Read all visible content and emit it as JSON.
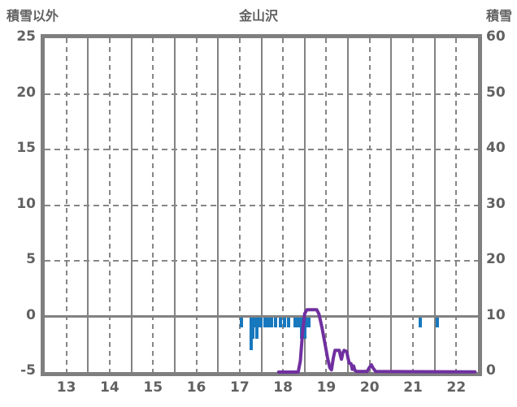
{
  "header": {
    "left_axis_title": "積雪以外",
    "chart_title": "金山沢",
    "right_axis_title": "積雪"
  },
  "colors": {
    "frame_gray": "#7f7f7f",
    "grid_gray": "#828282",
    "text_gray": "#616161",
    "bar_blue": "#1878be",
    "line_purple": "#7030a0",
    "background": "#ffffff"
  },
  "chart_data": {
    "type": "bar",
    "subtype": "dual-axis bar(down from zero) + line",
    "title": "金山沢",
    "x_axis": {
      "unit": "hour",
      "range": [
        13,
        23
      ],
      "tick_labels": [
        "13",
        "14",
        "15",
        "16",
        "17",
        "18",
        "19",
        "20",
        "21",
        "22"
      ],
      "tick_label_position": "centered between hour gridlines"
    },
    "left_axis": {
      "title": "積雪以外",
      "range": [
        -5,
        25
      ],
      "ticks": [
        "25",
        "20",
        "15",
        "10",
        "5",
        "0",
        "-5"
      ],
      "tick_values": [
        25,
        20,
        15,
        10,
        5,
        0,
        -5
      ]
    },
    "right_axis": {
      "title": "積雪",
      "range": [
        0,
        60
      ],
      "ticks": [
        "60",
        "50",
        "40",
        "30",
        "20",
        "10",
        "0"
      ],
      "tick_values": [
        60,
        50,
        40,
        30,
        20,
        10,
        0
      ]
    },
    "grid": {
      "vertical_solid_hours": [
        14,
        15,
        16,
        17,
        18,
        19,
        20,
        21,
        22
      ],
      "vertical_dashed_half_hours": [
        13.5,
        14.5,
        15.5,
        16.5,
        17.5,
        18.5,
        19.5,
        20.5,
        21.5,
        22.5
      ],
      "horizontal_dashed_left_values": [
        20,
        15,
        10,
        5
      ],
      "horizontal_solid_left_values": [
        0
      ]
    },
    "series": [
      {
        "name": "積雪以外",
        "type": "bar",
        "axis": "left",
        "color": "#1878be",
        "direction": "downward from 0",
        "points": [
          [
            17.54,
            1
          ],
          [
            17.76,
            3
          ],
          [
            17.81,
            2
          ],
          [
            17.86,
            1
          ],
          [
            17.9,
            2
          ],
          [
            17.95,
            1
          ],
          [
            17.99,
            1
          ],
          [
            18.09,
            1
          ],
          [
            18.13,
            1
          ],
          [
            18.19,
            1
          ],
          [
            18.23,
            1
          ],
          [
            18.33,
            1
          ],
          [
            18.45,
            1
          ],
          [
            18.53,
            1
          ],
          [
            18.63,
            1
          ],
          [
            18.78,
            1
          ],
          [
            18.83,
            1
          ],
          [
            18.89,
            1
          ],
          [
            18.93,
            2
          ],
          [
            18.97,
            1
          ],
          [
            19.01,
            2
          ],
          [
            19.05,
            1
          ],
          [
            19.09,
            1
          ],
          [
            21.67,
            1
          ],
          [
            22.07,
            1
          ]
        ]
      },
      {
        "name": "積雪",
        "type": "line",
        "axis": "right",
        "color": "#7030a0",
        "points": [
          [
            18.4,
            0
          ],
          [
            18.85,
            0
          ],
          [
            18.9,
            2
          ],
          [
            18.95,
            7
          ],
          [
            19.0,
            10.5
          ],
          [
            19.05,
            11.2
          ],
          [
            19.28,
            11.2
          ],
          [
            19.33,
            10.4
          ],
          [
            19.4,
            8
          ],
          [
            19.47,
            5
          ],
          [
            19.53,
            2.5
          ],
          [
            19.58,
            0.8
          ],
          [
            19.62,
            0.4
          ],
          [
            19.66,
            2.5
          ],
          [
            19.7,
            3.9
          ],
          [
            19.8,
            3.9
          ],
          [
            19.83,
            2.8
          ],
          [
            19.85,
            2.3
          ],
          [
            19.88,
            3.4
          ],
          [
            19.91,
            3.9
          ],
          [
            19.97,
            3.7
          ],
          [
            20.0,
            2.5
          ],
          [
            20.03,
            1.6
          ],
          [
            20.07,
            1.5
          ],
          [
            20.1,
            0.5
          ],
          [
            20.13,
            1.1
          ],
          [
            20.16,
            0.3
          ],
          [
            20.2,
            0.1
          ],
          [
            20.44,
            0.1
          ],
          [
            20.5,
            0.9
          ],
          [
            20.54,
            1.3
          ],
          [
            20.58,
            0.7
          ],
          [
            20.64,
            0.1
          ],
          [
            22.93,
            0.05
          ]
        ]
      }
    ]
  }
}
